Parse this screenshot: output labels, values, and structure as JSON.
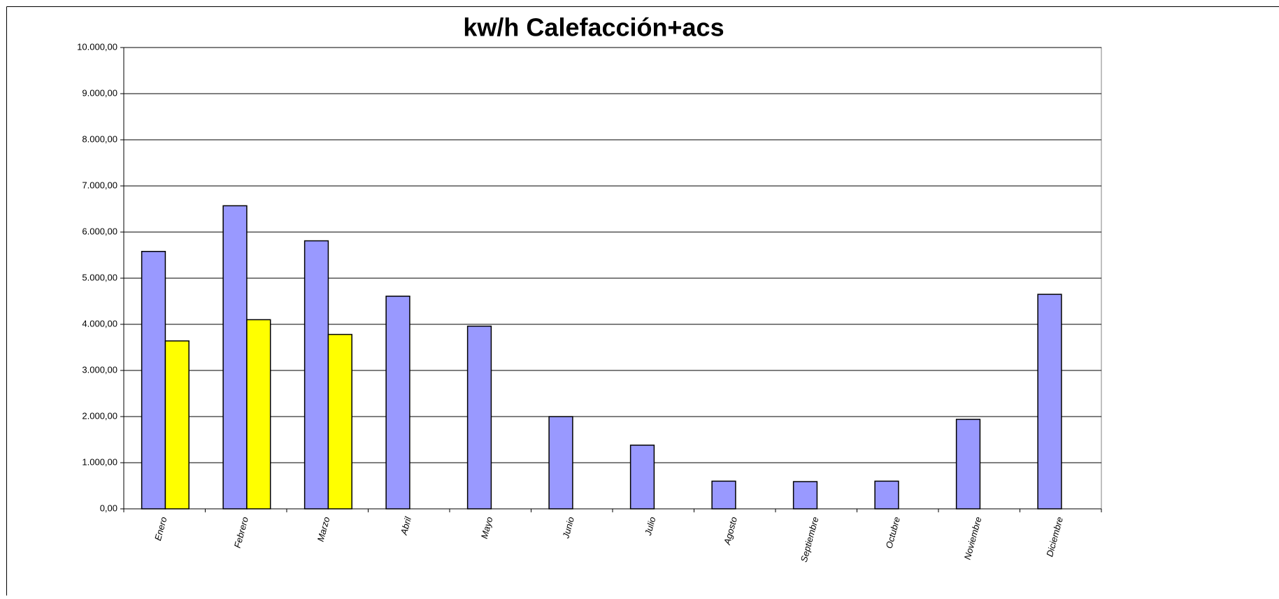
{
  "chart_data": {
    "type": "bar",
    "title": "kw/h Calefacción+acs",
    "categories": [
      "Enero",
      "Febrero",
      "Marzo",
      "Abril",
      "Mayo",
      "Junio",
      "Julio",
      "Agosto",
      "Septiembre",
      "Octubre",
      "Noviembre",
      "Diciembre"
    ],
    "series": [
      {
        "color": "#9999ff",
        "values": [
          5580,
          6570,
          5810,
          4610,
          3960,
          2000,
          1380,
          600,
          590,
          600,
          1940,
          4650
        ]
      },
      {
        "color": "#ffff00",
        "values": [
          3640,
          4100,
          3780,
          null,
          null,
          null,
          null,
          null,
          null,
          null,
          null,
          null
        ]
      }
    ],
    "ylim": [
      0,
      10000
    ],
    "yticks": [
      {
        "value": 0,
        "label": "0,00"
      },
      {
        "value": 1000,
        "label": "1.000,00"
      },
      {
        "value": 2000,
        "label": "2.000,00"
      },
      {
        "value": 3000,
        "label": "3.000,00"
      },
      {
        "value": 4000,
        "label": "4.000,00"
      },
      {
        "value": 5000,
        "label": "5.000,00"
      },
      {
        "value": 6000,
        "label": "6.000,00"
      },
      {
        "value": 7000,
        "label": "7.000,00"
      },
      {
        "value": 8000,
        "label": "8.000,00"
      },
      {
        "value": 9000,
        "label": "9.000,00"
      },
      {
        "value": 10000,
        "label": "10.000,00"
      }
    ],
    "grid": true
  }
}
